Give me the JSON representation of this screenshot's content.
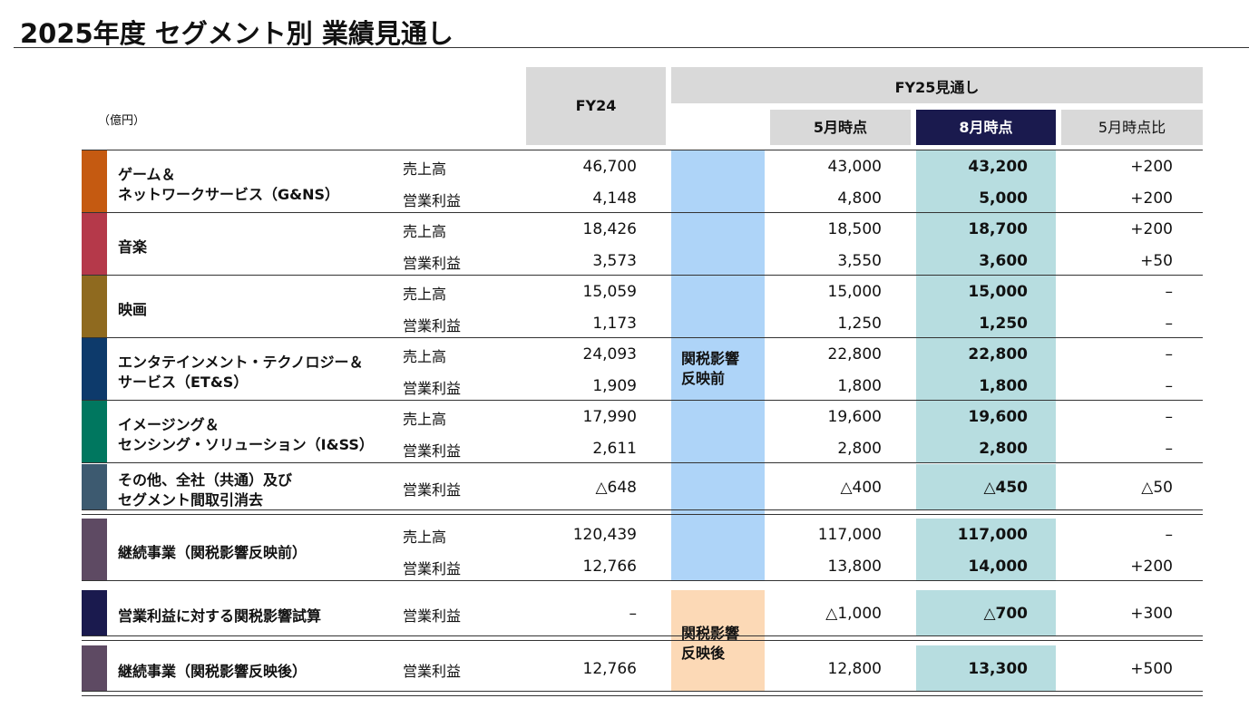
{
  "title": "2025年度 セグメント別 業績見通し",
  "unit": "（億円）",
  "headers": {
    "fy24": "FY24",
    "fy25": "FY25見通し",
    "may": "5月時点",
    "aug": "8月時点",
    "diff": "5月時点比"
  },
  "bands": [
    {
      "lines": [
        "関税影響",
        "反映前"
      ],
      "color": "#aed4f8"
    },
    {
      "lines": [
        "関税影響",
        "反映後"
      ],
      "color": "#fcd9b6"
    }
  ],
  "segments": [
    {
      "name": [
        "ゲーム＆",
        "ネットワークサービス（G&NS）"
      ],
      "color": "#c55a11",
      "rows": [
        {
          "metric": "売上高",
          "fy24": "46,700",
          "may": "43,000",
          "aug": "43,200",
          "diff": "+200"
        },
        {
          "metric": "営業利益",
          "fy24": "4,148",
          "may": "4,800",
          "aug": "5,000",
          "diff": "+200"
        }
      ]
    },
    {
      "name": [
        "音楽"
      ],
      "color": "#b5394a",
      "rows": [
        {
          "metric": "売上高",
          "fy24": "18,426",
          "may": "18,500",
          "aug": "18,700",
          "diff": "+200"
        },
        {
          "metric": "営業利益",
          "fy24": "3,573",
          "may": "3,550",
          "aug": "3,600",
          "diff": "+50"
        }
      ]
    },
    {
      "name": [
        "映画"
      ],
      "color": "#8f6a1f",
      "rows": [
        {
          "metric": "売上高",
          "fy24": "15,059",
          "may": "15,000",
          "aug": "15,000",
          "diff": "–"
        },
        {
          "metric": "営業利益",
          "fy24": "1,173",
          "may": "1,250",
          "aug": "1,250",
          "diff": "–"
        }
      ]
    },
    {
      "name": [
        "エンタテインメント・テクノロジー＆",
        "サービス（ET&S）"
      ],
      "color": "#0d3a6b",
      "rows": [
        {
          "metric": "売上高",
          "fy24": "24,093",
          "may": "22,800",
          "aug": "22,800",
          "diff": "–"
        },
        {
          "metric": "営業利益",
          "fy24": "1,909",
          "may": "1,800",
          "aug": "1,800",
          "diff": "–"
        }
      ]
    },
    {
      "name": [
        "イメージング＆",
        "センシング・ソリューション（I&SS）"
      ],
      "color": "#00775f",
      "rows": [
        {
          "metric": "売上高",
          "fy24": "17,990",
          "may": "19,600",
          "aug": "19,600",
          "diff": "–"
        },
        {
          "metric": "営業利益",
          "fy24": "2,611",
          "may": "2,800",
          "aug": "2,800",
          "diff": "–"
        }
      ]
    },
    {
      "name": [
        "その他、全社（共通）及び",
        "セグメント間取引消去"
      ],
      "color": "#3d5a70",
      "rows": [
        {
          "metric": "営業利益",
          "fy24": "△648",
          "may": "△400",
          "aug": "△450",
          "diff": "△50"
        }
      ]
    },
    {
      "name": [
        "継続事業（関税影響反映前）"
      ],
      "color": "#5e4a63",
      "rows": [
        {
          "metric": "売上高",
          "fy24": "120,439",
          "may": "117,000",
          "aug": "117,000",
          "diff": "–"
        },
        {
          "metric": "営業利益",
          "fy24": "12,766",
          "may": "13,800",
          "aug": "14,000",
          "diff": "+200"
        }
      ]
    },
    {
      "name": [
        "営業利益に対する関税影響試算"
      ],
      "color": "#1a1a4e",
      "rows": [
        {
          "metric": "営業利益",
          "fy24": "–",
          "may": "△1,000",
          "aug": "△700",
          "diff": "+300"
        }
      ]
    },
    {
      "name": [
        "継続事業（関税影響反映後）"
      ],
      "color": "#5e4a63",
      "rows": [
        {
          "metric": "営業利益",
          "fy24": "12,766",
          "may": "12,800",
          "aug": "13,300",
          "diff": "+500"
        }
      ]
    }
  ]
}
